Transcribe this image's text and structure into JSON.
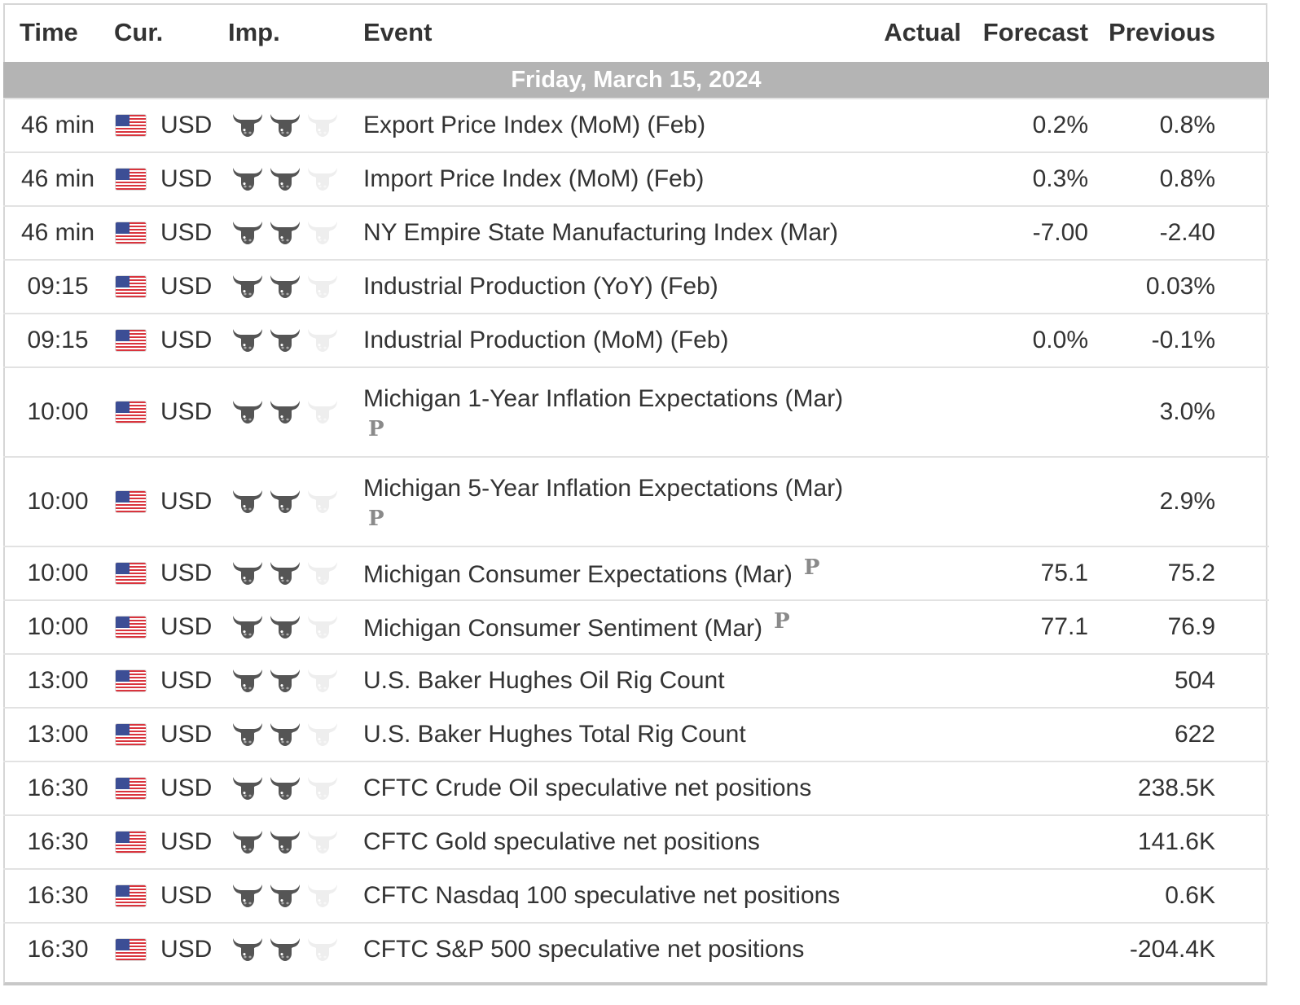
{
  "headers": {
    "time": "Time",
    "currency": "Cur.",
    "importance": "Imp.",
    "event": "Event",
    "actual": "Actual",
    "forecast": "Forecast",
    "previous": "Previous"
  },
  "date_label": "Friday, March 15, 2024",
  "importance_icon": "bull-icon",
  "prelim_marker": "P",
  "colors": {
    "date_bar": "#b4b4b4",
    "bull_active": "#555555",
    "bull_inactive": "#eeeeee"
  },
  "rows": [
    {
      "time": "46 min",
      "currency": "USD",
      "importance": 2,
      "event": "Export Price Index (MoM) (Feb)",
      "actual": "",
      "forecast": "0.2%",
      "previous": "0.8%"
    },
    {
      "time": "46 min",
      "currency": "USD",
      "importance": 2,
      "event": "Import Price Index (MoM) (Feb)",
      "actual": "",
      "forecast": "0.3%",
      "previous": "0.8%"
    },
    {
      "time": "46 min",
      "currency": "USD",
      "importance": 2,
      "event": "NY Empire State Manufacturing Index (Mar)",
      "actual": "",
      "forecast": "-7.00",
      "previous": "-2.40"
    },
    {
      "time": "09:15",
      "currency": "USD",
      "importance": 2,
      "event": "Industrial Production (YoY) (Feb)",
      "actual": "",
      "forecast": "",
      "previous": "0.03%"
    },
    {
      "time": "09:15",
      "currency": "USD",
      "importance": 2,
      "event": "Industrial Production (MoM) (Feb)",
      "actual": "",
      "forecast": "0.0%",
      "previous": "-0.1%"
    },
    {
      "time": "10:00",
      "currency": "USD",
      "importance": 2,
      "event": "Michigan 1-Year Inflation Expectations (Mar)",
      "actual": "",
      "forecast": "",
      "previous": "3.0%",
      "preliminary": true
    },
    {
      "time": "10:00",
      "currency": "USD",
      "importance": 2,
      "event": "Michigan 5-Year Inflation Expectations (Mar)",
      "actual": "",
      "forecast": "",
      "previous": "2.9%",
      "preliminary": true
    },
    {
      "time": "10:00",
      "currency": "USD",
      "importance": 2,
      "event": "Michigan Consumer Expectations (Mar)",
      "actual": "",
      "forecast": "75.1",
      "previous": "75.2",
      "preliminary": true
    },
    {
      "time": "10:00",
      "currency": "USD",
      "importance": 2,
      "event": "Michigan Consumer Sentiment (Mar)",
      "actual": "",
      "forecast": "77.1",
      "previous": "76.9",
      "preliminary": true
    },
    {
      "time": "13:00",
      "currency": "USD",
      "importance": 2,
      "event": "U.S. Baker Hughes Oil Rig Count",
      "actual": "",
      "forecast": "",
      "previous": "504"
    },
    {
      "time": "13:00",
      "currency": "USD",
      "importance": 2,
      "event": "U.S. Baker Hughes Total Rig Count",
      "actual": "",
      "forecast": "",
      "previous": "622"
    },
    {
      "time": "16:30",
      "currency": "USD",
      "importance": 2,
      "event": "CFTC Crude Oil speculative net positions",
      "actual": "",
      "forecast": "",
      "previous": "238.5K"
    },
    {
      "time": "16:30",
      "currency": "USD",
      "importance": 2,
      "event": "CFTC Gold speculative net positions",
      "actual": "",
      "forecast": "",
      "previous": "141.6K"
    },
    {
      "time": "16:30",
      "currency": "USD",
      "importance": 2,
      "event": "CFTC Nasdaq 100 speculative net positions",
      "actual": "",
      "forecast": "",
      "previous": "0.6K"
    },
    {
      "time": "16:30",
      "currency": "USD",
      "importance": 2,
      "event": "CFTC S&P 500 speculative net positions",
      "actual": "",
      "forecast": "",
      "previous": "-204.4K"
    }
  ]
}
